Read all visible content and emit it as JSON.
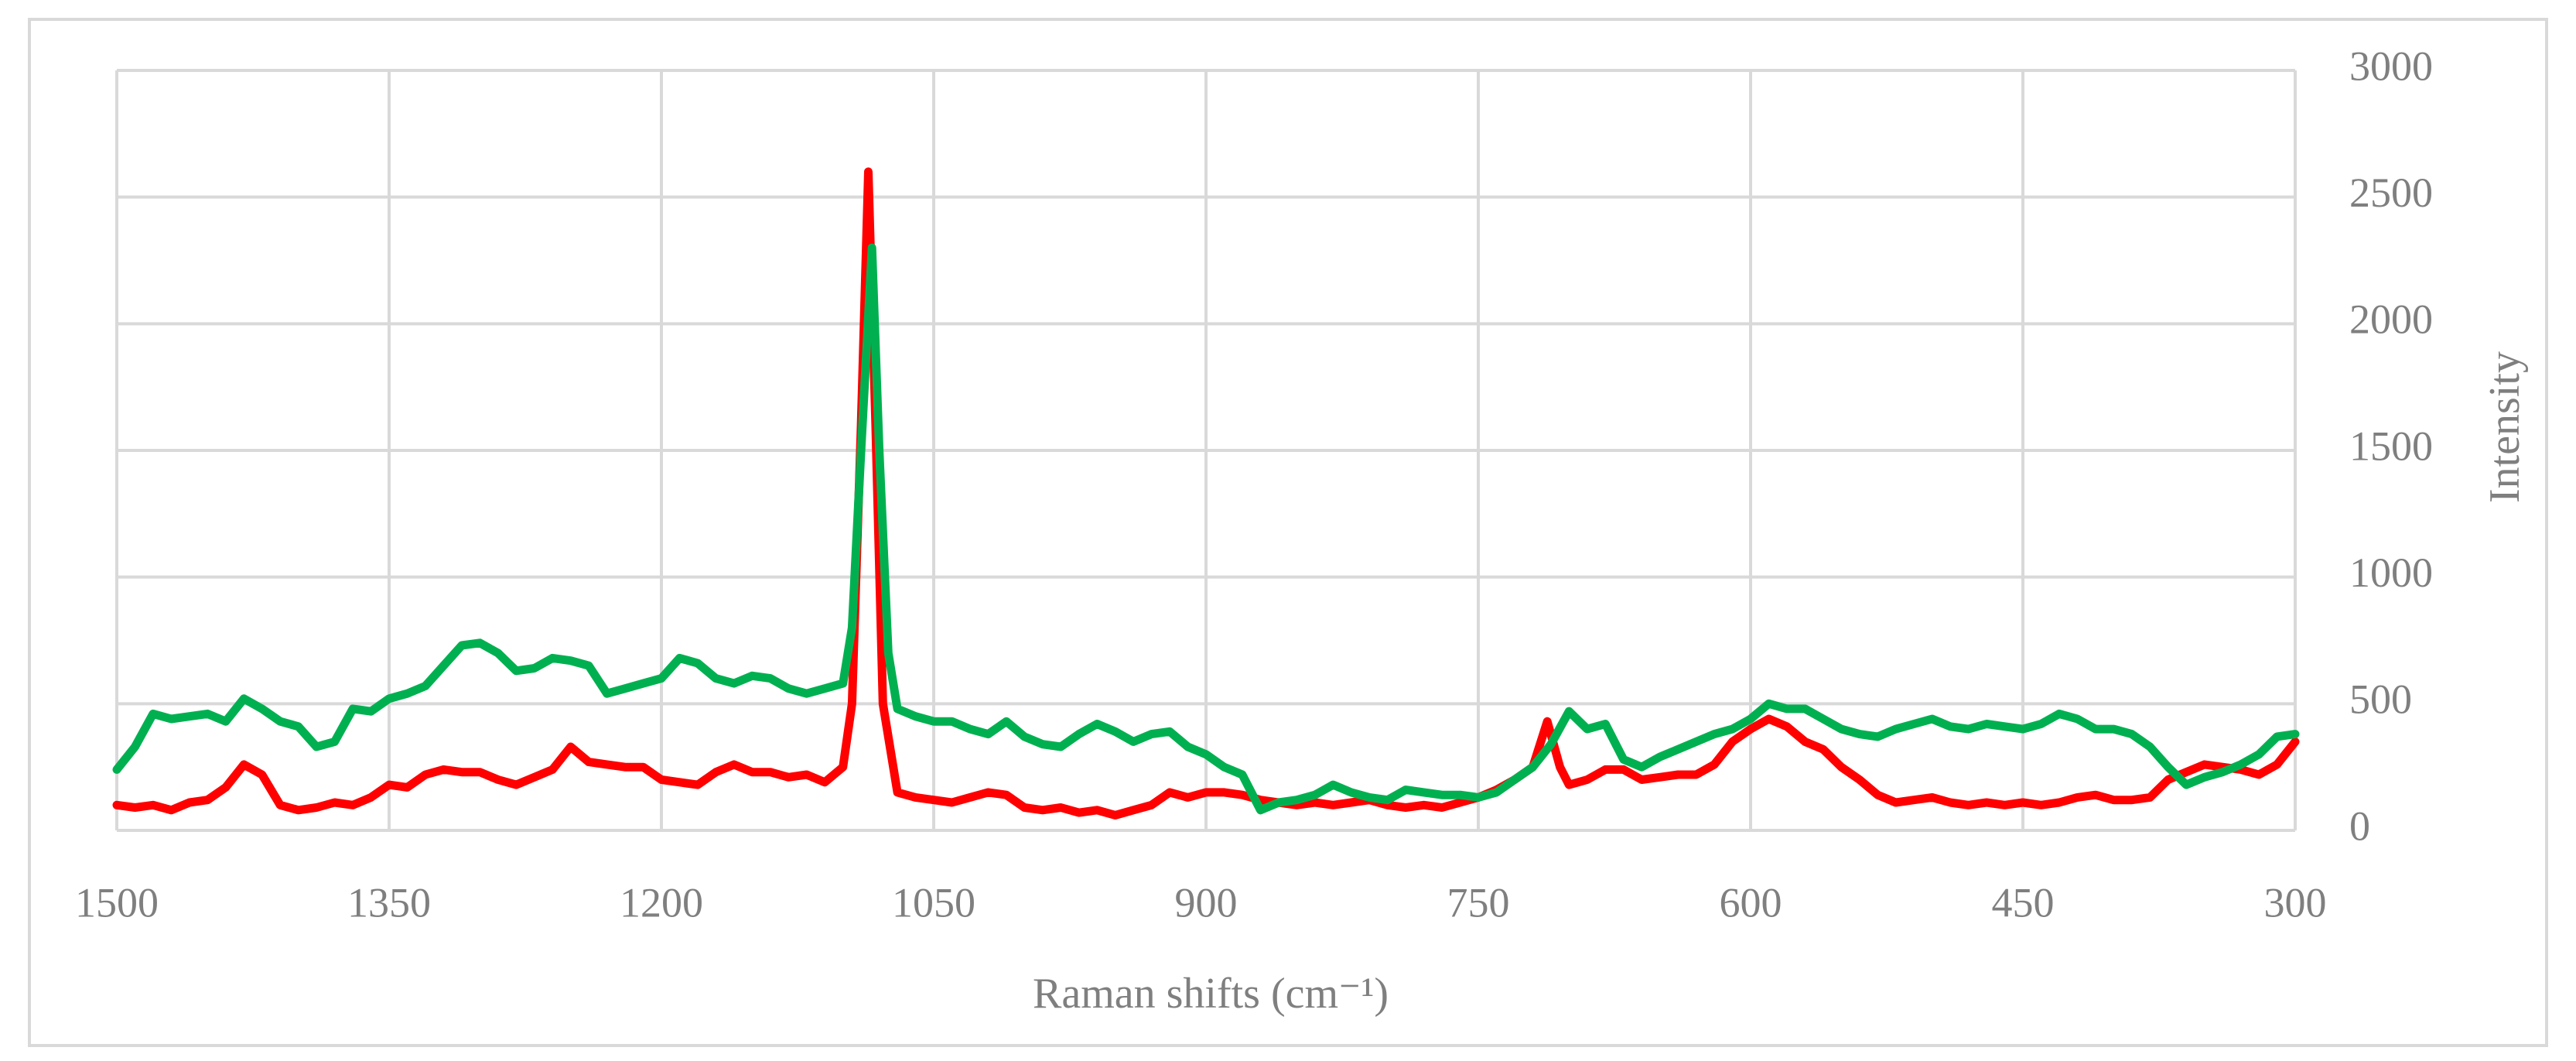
{
  "chart_data": {
    "type": "line",
    "x_label": "Raman shifts (cm⁻¹)",
    "y_label": "Intensity",
    "xlim": [
      1500,
      300
    ],
    "xticks": [
      1500,
      1350,
      1200,
      1050,
      900,
      750,
      600,
      450,
      300
    ],
    "ylim": [
      0,
      3000
    ],
    "yticks": [
      0,
      500,
      1000,
      1500,
      2000,
      2500,
      3000
    ],
    "grid": true,
    "y_axis_side": "right",
    "series": [
      {
        "color": "#ff0000",
        "x": [
          1500,
          1490,
          1480,
          1470,
          1460,
          1450,
          1440,
          1430,
          1420,
          1410,
          1400,
          1390,
          1380,
          1370,
          1360,
          1350,
          1340,
          1330,
          1320,
          1310,
          1300,
          1290,
          1280,
          1270,
          1260,
          1250,
          1240,
          1230,
          1220,
          1210,
          1200,
          1190,
          1180,
          1170,
          1160,
          1150,
          1140,
          1130,
          1120,
          1110,
          1100,
          1095,
          1090,
          1086,
          1082,
          1078,
          1070,
          1060,
          1050,
          1040,
          1030,
          1020,
          1010,
          1000,
          990,
          980,
          970,
          960,
          950,
          940,
          930,
          920,
          910,
          900,
          890,
          880,
          870,
          860,
          850,
          840,
          830,
          820,
          810,
          800,
          790,
          780,
          770,
          760,
          750,
          740,
          730,
          720,
          712,
          705,
          700,
          690,
          680,
          670,
          660,
          650,
          640,
          630,
          620,
          610,
          600,
          590,
          580,
          570,
          560,
          550,
          540,
          530,
          520,
          510,
          500,
          490,
          480,
          470,
          460,
          450,
          440,
          430,
          420,
          410,
          400,
          390,
          380,
          370,
          360,
          350,
          340,
          330,
          320,
          310,
          300
        ],
        "values": [
          100,
          90,
          100,
          80,
          110,
          120,
          170,
          260,
          220,
          100,
          80,
          90,
          110,
          100,
          130,
          180,
          170,
          220,
          240,
          230,
          230,
          200,
          180,
          210,
          240,
          330,
          270,
          260,
          250,
          250,
          200,
          190,
          180,
          230,
          260,
          230,
          230,
          210,
          220,
          190,
          250,
          500,
          1600,
          2600,
          1600,
          500,
          150,
          130,
          120,
          110,
          130,
          150,
          140,
          90,
          80,
          90,
          70,
          80,
          60,
          80,
          100,
          150,
          130,
          150,
          150,
          140,
          120,
          110,
          100,
          110,
          100,
          110,
          120,
          100,
          90,
          100,
          90,
          110,
          130,
          160,
          200,
          250,
          430,
          250,
          180,
          200,
          240,
          240,
          200,
          210,
          220,
          220,
          260,
          350,
          400,
          440,
          410,
          350,
          320,
          250,
          200,
          140,
          110,
          120,
          130,
          110,
          100,
          110,
          100,
          110,
          100,
          110,
          130,
          140,
          120,
          120,
          130,
          200,
          230,
          260,
          250,
          240,
          220,
          260,
          350
        ]
      },
      {
        "color": "#00b050",
        "x": [
          1500,
          1490,
          1480,
          1470,
          1460,
          1450,
          1440,
          1430,
          1420,
          1410,
          1400,
          1390,
          1380,
          1370,
          1360,
          1350,
          1340,
          1330,
          1320,
          1310,
          1300,
          1290,
          1280,
          1270,
          1260,
          1250,
          1240,
          1230,
          1220,
          1210,
          1200,
          1190,
          1180,
          1170,
          1160,
          1150,
          1140,
          1130,
          1120,
          1110,
          1100,
          1095,
          1090,
          1084,
          1080,
          1075,
          1070,
          1060,
          1050,
          1040,
          1030,
          1020,
          1010,
          1000,
          990,
          980,
          970,
          960,
          950,
          940,
          930,
          920,
          910,
          900,
          890,
          880,
          870,
          860,
          850,
          840,
          830,
          820,
          810,
          800,
          790,
          780,
          770,
          760,
          750,
          740,
          730,
          720,
          710,
          700,
          690,
          680,
          670,
          660,
          650,
          640,
          630,
          620,
          610,
          600,
          590,
          580,
          570,
          560,
          550,
          540,
          530,
          520,
          510,
          500,
          490,
          480,
          470,
          460,
          450,
          440,
          430,
          420,
          410,
          400,
          390,
          380,
          370,
          360,
          350,
          340,
          330,
          320,
          310,
          300
        ],
        "values": [
          240,
          330,
          460,
          440,
          450,
          460,
          430,
          520,
          480,
          430,
          410,
          330,
          350,
          480,
          470,
          520,
          540,
          570,
          650,
          730,
          740,
          700,
          630,
          640,
          680,
          670,
          650,
          540,
          560,
          580,
          600,
          680,
          660,
          600,
          580,
          610,
          600,
          560,
          540,
          560,
          580,
          800,
          1500,
          2300,
          1500,
          700,
          480,
          450,
          430,
          430,
          400,
          380,
          430,
          370,
          340,
          330,
          380,
          420,
          390,
          350,
          380,
          390,
          330,
          300,
          250,
          220,
          80,
          110,
          120,
          140,
          180,
          150,
          130,
          120,
          160,
          150,
          140,
          140,
          130,
          150,
          200,
          250,
          340,
          470,
          400,
          420,
          280,
          250,
          290,
          320,
          350,
          380,
          400,
          440,
          500,
          480,
          480,
          440,
          400,
          380,
          370,
          400,
          420,
          440,
          410,
          400,
          420,
          410,
          400,
          420,
          460,
          440,
          400,
          400,
          380,
          330,
          250,
          180,
          210,
          230,
          260,
          300,
          370,
          380
        ]
      }
    ]
  }
}
